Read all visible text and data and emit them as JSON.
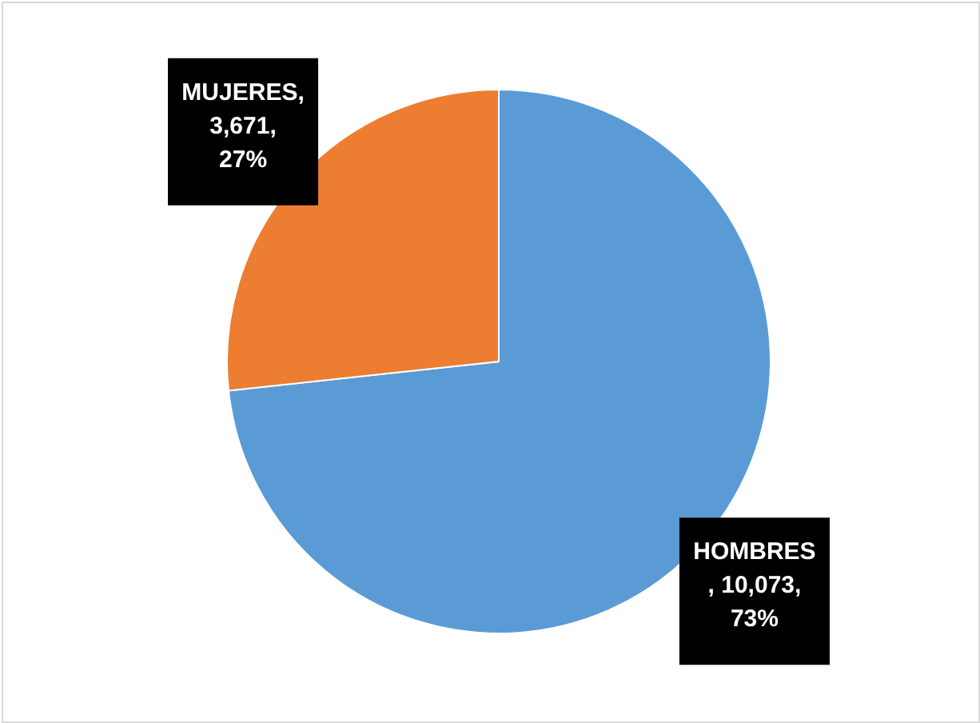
{
  "chart_data": {
    "type": "pie",
    "categories": [
      "HOMBRES",
      "MUJERES"
    ],
    "values": [
      10073,
      3671
    ],
    "colors": [
      "#5b9bd5",
      "#ed7d31"
    ],
    "value_labels": [
      "\n, 10,073,\n73%",
      ",\n3,671,\n27%"
    ]
  }
}
